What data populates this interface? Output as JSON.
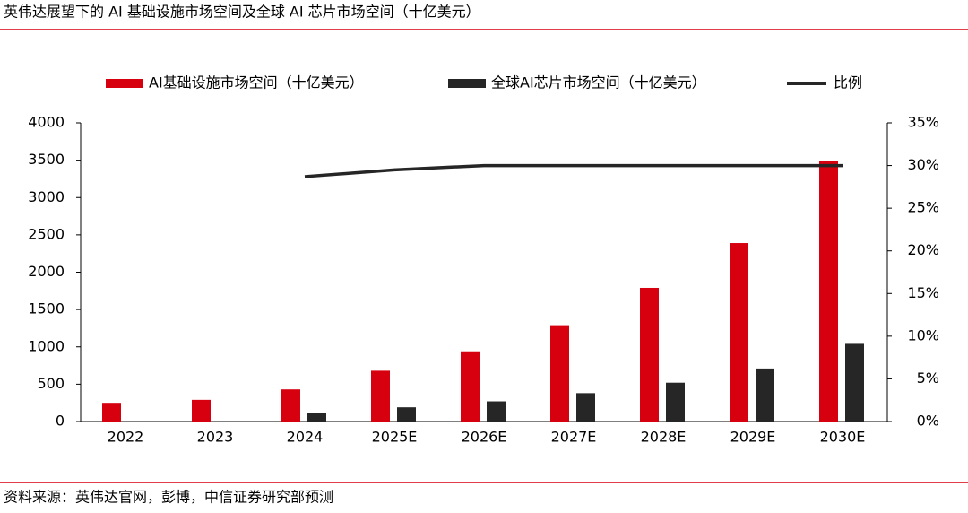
{
  "chart_data": {
    "type": "bar",
    "title": "英伟达展望下的 AI 基础设施市场空间及全球 AI 芯片市场空间（十亿美元）",
    "source": "资料来源：英伟达官网，彭博，中信证券研究部预测",
    "categories": [
      "2022",
      "2023",
      "2024",
      "2025E",
      "2026E",
      "2027E",
      "2028E",
      "2029E",
      "2030E"
    ],
    "series": [
      {
        "name": "AI基础设施市场空间（十亿美元）",
        "type": "bar",
        "color": "#d7000f",
        "values": [
          250,
          290,
          430,
          680,
          940,
          1290,
          1790,
          2390,
          3490
        ]
      },
      {
        "name": "全球AI芯片市场空间（十亿美元）",
        "type": "bar",
        "color": "#262626",
        "values": [
          null,
          null,
          110,
          190,
          270,
          380,
          520,
          710,
          1040
        ]
      },
      {
        "name": "比例",
        "type": "line",
        "axis": "y2",
        "color": "#262626",
        "values": [
          null,
          null,
          28.7,
          29.5,
          30,
          30,
          30,
          30,
          30
        ]
      }
    ],
    "ylim": [
      0,
      4000
    ],
    "yticks": [
      0,
      500,
      1000,
      1500,
      2000,
      2500,
      3000,
      3500,
      4000
    ],
    "y2lim": [
      0,
      35
    ],
    "y2ticks": [
      {
        "value": 0,
        "label": "0%"
      },
      {
        "value": 5,
        "label": "5%"
      },
      {
        "value": 10,
        "label": "10%"
      },
      {
        "value": 15,
        "label": "15%"
      },
      {
        "value": 20,
        "label": "20%"
      },
      {
        "value": 25,
        "label": "25%"
      },
      {
        "value": 30,
        "label": "30%"
      },
      {
        "value": 35,
        "label": "35%"
      }
    ],
    "legend": "top"
  }
}
